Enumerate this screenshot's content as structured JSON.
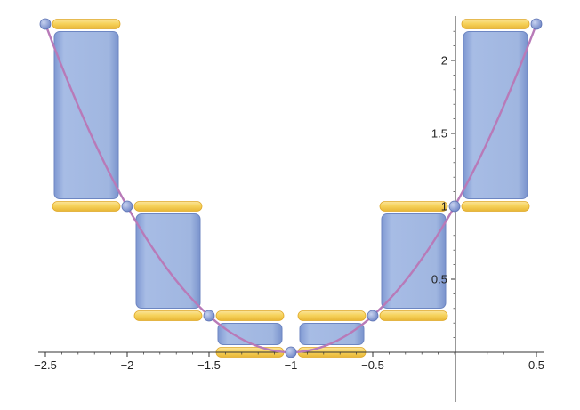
{
  "chart_data": {
    "type": "bar",
    "function_label": "",
    "xlim": [
      -2.5,
      0.5
    ],
    "ylim": [
      0,
      2.25
    ],
    "x_ticks": [
      {
        "value": -2.5,
        "label": "−2.5"
      },
      {
        "value": -2,
        "label": "−2"
      },
      {
        "value": -1.5,
        "label": "−1.5"
      },
      {
        "value": -1,
        "label": "−1"
      },
      {
        "value": -0.5,
        "label": "−0.5"
      },
      {
        "value": 0.5,
        "label": "0.5"
      }
    ],
    "y_ticks": [
      {
        "value": 0.5,
        "label": "0.5"
      },
      {
        "value": 1,
        "label": "1"
      },
      {
        "value": 1.5,
        "label": "1.5"
      },
      {
        "value": 2,
        "label": "2"
      }
    ],
    "bars": [
      {
        "x0": -2.5,
        "x1": -2.0,
        "f_left": 2.25,
        "f_right": 1.0
      },
      {
        "x0": -2.0,
        "x1": -1.5,
        "f_left": 1.0,
        "f_right": 0.25
      },
      {
        "x0": -1.5,
        "x1": -1.0,
        "f_left": 0.25,
        "f_right": 0.0
      },
      {
        "x0": -1.0,
        "x1": -0.5,
        "f_left": 0.0,
        "f_right": 0.25
      },
      {
        "x0": -0.5,
        "x1": 0.0,
        "f_left": 0.25,
        "f_right": 1.0
      },
      {
        "x0": 0.0,
        "x1": 0.5,
        "f_left": 1.0,
        "f_right": 2.25
      }
    ],
    "curve": {
      "formula": "(x+1)^2",
      "x_range": [
        -2.5,
        0.5
      ]
    },
    "sample_points": [
      {
        "x": -2.5,
        "y": 2.25
      },
      {
        "x": -2.0,
        "y": 1.0
      },
      {
        "x": -1.5,
        "y": 0.25
      },
      {
        "x": -1.0,
        "y": 0.0
      },
      {
        "x": -0.5,
        "y": 0.25
      },
      {
        "x": 0.0,
        "y": 1.0
      },
      {
        "x": 0.5,
        "y": 2.25
      }
    ],
    "colors": {
      "bar_fill": "#9fb4de",
      "bar_edge": "#6d86c2",
      "cap_fill": "#f5cf55",
      "cap_edge": "#e0a92a",
      "curve": "#b87ab8",
      "point": "#7f95d0",
      "axis": "#333333"
    },
    "grid": false
  }
}
